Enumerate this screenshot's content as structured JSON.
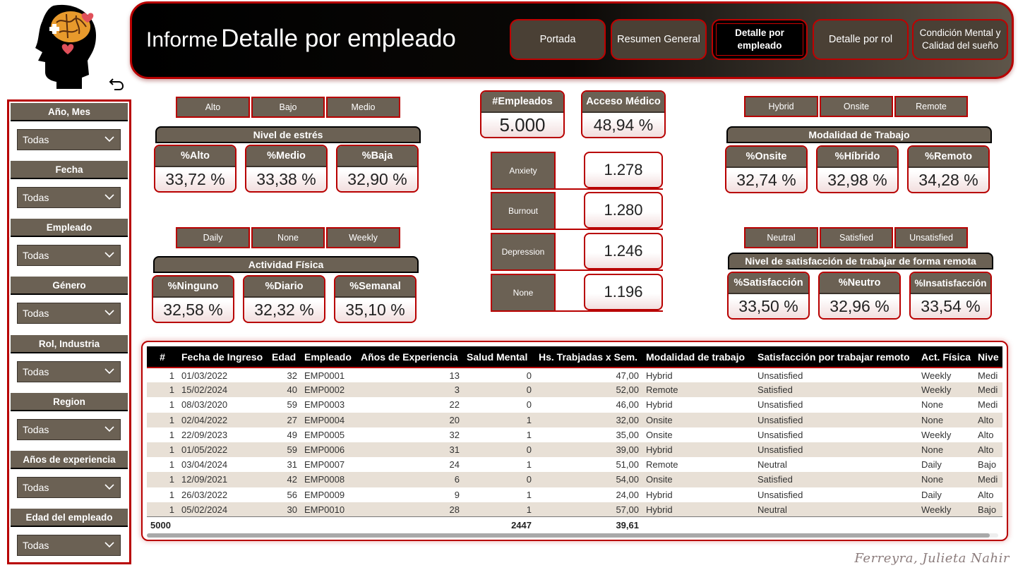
{
  "header": {
    "title_prefix": "Informe",
    "title_main": "Detalle por empleado",
    "nav": [
      {
        "label": "Portada"
      },
      {
        "label": "Resumen General"
      },
      {
        "label": "Detalle por empleado"
      },
      {
        "label": "Detalle por rol"
      },
      {
        "label": "Condición Mental y Calidad del sueño"
      }
    ]
  },
  "filters": [
    {
      "label": "Año, Mes",
      "value": "Todas"
    },
    {
      "label": "Fecha",
      "value": "Todas"
    },
    {
      "label": "Empleado",
      "value": "Todas"
    },
    {
      "label": "Género",
      "value": "Todas"
    },
    {
      "label": "Rol, Industria",
      "value": "Todas"
    },
    {
      "label": "Region",
      "value": "Todas"
    },
    {
      "label": "Años de experiencia",
      "value": "Todas"
    },
    {
      "label": "Edad del empleado",
      "value": "Todas"
    }
  ],
  "stress": {
    "chips": [
      "Alto",
      "Bajo",
      "Medio"
    ],
    "title": "Nivel de estrés",
    "kpis": [
      {
        "label": "%Alto",
        "value": "33,72 %"
      },
      {
        "label": "%Medio",
        "value": "33,38 %"
      },
      {
        "label": "%Baja",
        "value": "32,90 %"
      }
    ]
  },
  "activity": {
    "chips": [
      "Daily",
      "None",
      "Weekly"
    ],
    "title": "Actividad Física",
    "kpis": [
      {
        "label": "%Ninguno",
        "value": "32,58 %"
      },
      {
        "label": "%Diario",
        "value": "32,32 %"
      },
      {
        "label": "%Semanal",
        "value": "35,10 %"
      }
    ]
  },
  "center": {
    "employees": {
      "label": "#Empleados",
      "value": "5.000"
    },
    "medical": {
      "label": "Acceso Médico",
      "value": "48,94 %"
    },
    "conditions": [
      {
        "label": "Anxiety",
        "value": "1.278"
      },
      {
        "label": "Burnout",
        "value": "1.280"
      },
      {
        "label": "Depression",
        "value": "1.246"
      },
      {
        "label": "None",
        "value": "1.196"
      }
    ]
  },
  "work_mode": {
    "chips": [
      "Hybrid",
      "Onsite",
      "Remote"
    ],
    "title": "Modalidad de Trabajo",
    "kpis": [
      {
        "label": "%Onsite",
        "value": "32,74 %"
      },
      {
        "label": "%Híbrido",
        "value": "32,98 %"
      },
      {
        "label": "%Remoto",
        "value": "34,28 %"
      }
    ]
  },
  "satisfaction": {
    "chips": [
      "Neutral",
      "Satisfied",
      "Unsatisfied"
    ],
    "title": "Nivel de satisfacción de trabajar de forma remota",
    "kpis": [
      {
        "label": "%Satisfacción",
        "value": "33,50 %"
      },
      {
        "label": "%Neutro",
        "value": "32,96 %"
      },
      {
        "label": "%Insatisfacción",
        "value": "33,54 %"
      }
    ]
  },
  "table": {
    "columns": [
      "#",
      "Fecha de Ingreso",
      "Edad",
      "Empleado",
      "Años de Experiencia",
      "Salud Mental",
      "Hs. Trabjadas x Sem.",
      "Modalidad de trabajo",
      "Satisfacción por trabajar remoto",
      "Act. Física",
      "Nive"
    ],
    "rows": [
      [
        "1",
        "01/03/2022",
        "32",
        "EMP0001",
        "13",
        "0",
        "47,00",
        "Hybrid",
        "Unsatisfied",
        "Weekly",
        "Medi"
      ],
      [
        "1",
        "15/02/2024",
        "40",
        "EMP0002",
        "3",
        "0",
        "52,00",
        "Remote",
        "Satisfied",
        "Weekly",
        "Medi"
      ],
      [
        "1",
        "08/03/2020",
        "59",
        "EMP0003",
        "22",
        "0",
        "46,00",
        "Hybrid",
        "Unsatisfied",
        "None",
        "Medi"
      ],
      [
        "1",
        "02/04/2022",
        "27",
        "EMP0004",
        "20",
        "1",
        "32,00",
        "Onsite",
        "Unsatisfied",
        "None",
        "Alto"
      ],
      [
        "1",
        "22/09/2023",
        "49",
        "EMP0005",
        "32",
        "1",
        "35,00",
        "Onsite",
        "Unsatisfied",
        "Weekly",
        "Alto"
      ],
      [
        "1",
        "01/05/2022",
        "59",
        "EMP0006",
        "31",
        "0",
        "39,00",
        "Hybrid",
        "Unsatisfied",
        "None",
        "Alto"
      ],
      [
        "1",
        "03/04/2024",
        "31",
        "EMP0007",
        "24",
        "1",
        "51,00",
        "Remote",
        "Neutral",
        "Daily",
        "Bajo"
      ],
      [
        "1",
        "12/09/2021",
        "42",
        "EMP0008",
        "6",
        "0",
        "54,00",
        "Onsite",
        "Satisfied",
        "None",
        "Medi"
      ],
      [
        "1",
        "26/03/2022",
        "56",
        "EMP0009",
        "9",
        "1",
        "24,00",
        "Hybrid",
        "Unsatisfied",
        "Daily",
        "Alto"
      ],
      [
        "1",
        "05/02/2024",
        "30",
        "EMP0010",
        "28",
        "1",
        "57,00",
        "Hybrid",
        "Neutral",
        "Weekly",
        "Bajo"
      ]
    ],
    "totals": [
      "5000",
      "",
      "",
      "",
      "",
      "2447",
      "39,61",
      "",
      "",
      "",
      ""
    ]
  },
  "signature": "Ferreyra, Julieta Nahir",
  "colors": {
    "accent": "#b80000",
    "panel": "#6b6154",
    "header_dark": "#000000"
  }
}
